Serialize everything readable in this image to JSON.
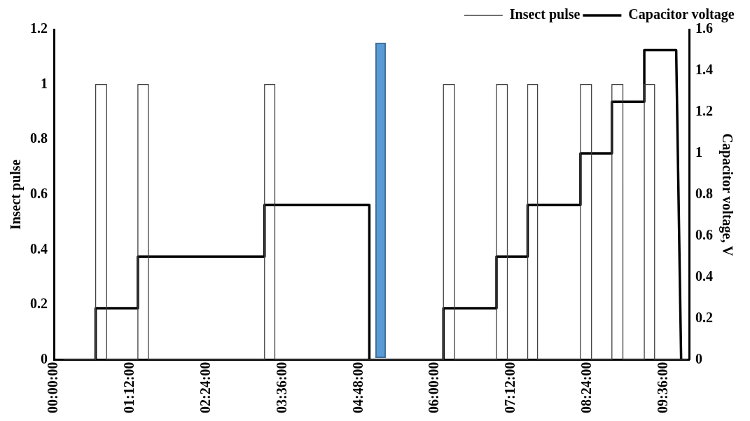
{
  "chart_data": {
    "type": "line",
    "ylabel": "Insect pulse",
    "y2label": "Capacitor voltage, V",
    "xlim": [
      0,
      10
    ],
    "xticks": [
      {
        "value": 0,
        "label": "00:00:00"
      },
      {
        "value": 1.2,
        "label": "01:12:00"
      },
      {
        "value": 2.4,
        "label": "02:24:00"
      },
      {
        "value": 3.6,
        "label": "03:36:00"
      },
      {
        "value": 4.8,
        "label": "04:48:00"
      },
      {
        "value": 6,
        "label": "06:00:00"
      },
      {
        "value": 7.2,
        "label": "07:12:00"
      },
      {
        "value": 8.4,
        "label": "08:24:00"
      },
      {
        "value": 9.6,
        "label": "09:36:00"
      }
    ],
    "ylim": [
      0,
      1.2
    ],
    "yticks": [
      0,
      0.2,
      0.4,
      0.6,
      0.8,
      1,
      1.2
    ],
    "y2lim": [
      0,
      1.6
    ],
    "y2ticks": [
      0,
      0.2,
      0.4,
      0.6,
      0.8,
      1,
      1.2,
      1.4,
      1.6
    ],
    "legend": "top right",
    "grid": false,
    "marker": "none",
    "line_style": "solid",
    "series": [
      {
        "name": "Insect pulse",
        "color": "#404040",
        "x": [
          0.15,
          0.657,
          0.657,
          0.83,
          0.83,
          1.322,
          1.322,
          1.488,
          1.488,
          3.316,
          3.316,
          3.478,
          3.478,
          6.133,
          6.133,
          6.307,
          6.307,
          6.968,
          6.968,
          7.139,
          7.139,
          7.459,
          7.459,
          7.614,
          7.614,
          8.29,
          8.29,
          8.464,
          8.464,
          8.785,
          8.785,
          8.958,
          8.958,
          9.295,
          9.295,
          9.457,
          9.457,
          9.97
        ],
        "values": [
          0,
          0,
          1,
          1,
          0,
          0,
          1,
          1,
          0,
          0,
          1,
          1,
          0,
          0,
          1,
          1,
          0,
          0,
          1,
          1,
          0,
          0,
          1,
          1,
          0,
          0,
          1,
          1,
          0,
          0,
          1,
          1,
          0,
          0,
          1,
          1,
          0,
          0
        ]
      },
      {
        "name": "Capacitor voltage",
        "color": "#000000",
        "axis": "y2",
        "x": [
          0.15,
          0.657,
          0.657,
          1.322,
          1.322,
          3.316,
          3.316,
          4.966,
          4.966,
          6.133,
          6.133,
          6.968,
          6.968,
          7.459,
          7.459,
          8.29,
          8.29,
          8.785,
          8.785,
          9.295,
          9.295,
          9.797,
          9.875,
          9.97
        ],
        "values": [
          0,
          0,
          0.25,
          0.25,
          0.5,
          0.5,
          0.75,
          0.75,
          0,
          0,
          0.25,
          0.25,
          0.5,
          0.5,
          0.75,
          0.75,
          1,
          1,
          1.25,
          1.25,
          1.5,
          1.5,
          0,
          0
        ]
      }
    ]
  }
}
